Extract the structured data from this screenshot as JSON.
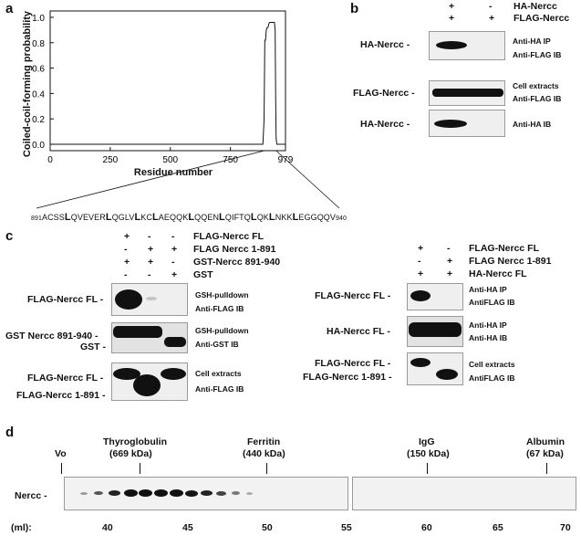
{
  "panel_a": {
    "letter": "a",
    "chart_data": {
      "type": "line",
      "ylabel": "Coiled-coil-forming probability",
      "xlabel": "Residue number",
      "xlim": [
        0,
        979
      ],
      "ylim": [
        -0.05,
        1.05
      ],
      "x_ticks": [
        "0",
        "250",
        "500",
        "750",
        "979"
      ],
      "y_ticks": [
        "0.0",
        "0.2",
        "0.4",
        "0.6",
        "0.8",
        "1.0"
      ],
      "series": [
        {
          "x": [
            0,
            885,
            890,
            893,
            896,
            899,
            903,
            906,
            910,
            913,
            930,
            933,
            936,
            938,
            940,
            943,
            979
          ],
          "y": [
            0,
            0,
            0.2,
            0.82,
            0.82,
            0.9,
            0.92,
            0.92,
            0.95,
            0.96,
            0.96,
            0.96,
            0.9,
            0.4,
            0.05,
            0,
            0
          ]
        }
      ]
    },
    "sequence": {
      "start": "891",
      "end": "940",
      "segments": [
        [
          "ACSS",
          ""
        ],
        [
          "L",
          "b"
        ],
        [
          "QVEVER",
          ""
        ],
        [
          "L",
          "b"
        ],
        [
          "QGLV",
          ""
        ],
        [
          "L",
          "b"
        ],
        [
          "KC",
          ""
        ],
        [
          "L",
          "b"
        ],
        [
          "AEQQK",
          ""
        ],
        [
          "L",
          "b"
        ],
        [
          "QQEN",
          ""
        ],
        [
          "L",
          "b"
        ],
        [
          "QIFTQ",
          ""
        ],
        [
          "L",
          "b"
        ],
        [
          "QK",
          ""
        ],
        [
          "L",
          "b"
        ],
        [
          "NKK",
          ""
        ],
        [
          "L",
          "b"
        ],
        [
          "EGGQQV",
          ""
        ]
      ]
    }
  },
  "panel_b": {
    "letter": "b",
    "header": [
      {
        "signs": [
          "+",
          "-"
        ],
        "label": "HA-Nercc"
      },
      {
        "signs": [
          "+",
          "+"
        ],
        "label": "FLAG-Nercc"
      }
    ],
    "blots": [
      {
        "left": "HA-Nercc -",
        "right": [
          "Anti-HA IP",
          "Anti-FLAG IB"
        ]
      },
      {
        "left": "FLAG-Nercc -",
        "right": [
          "Cell extracts",
          "Anti-FLAG IB"
        ]
      },
      {
        "left": "HA-Nercc -",
        "right": [
          "Anti-HA IB"
        ]
      }
    ]
  },
  "panel_c": {
    "letter": "c",
    "left_header": [
      {
        "signs": [
          "+",
          "-",
          "-"
        ],
        "label": "FLAG-Nercc FL"
      },
      {
        "signs": [
          "-",
          "+",
          "+"
        ],
        "label": "FLAG Nercc 1-891"
      },
      {
        "signs": [
          "+",
          "+",
          "-"
        ],
        "label": "GST-Nercc 891-940"
      },
      {
        "signs": [
          "-",
          "-",
          "+"
        ],
        "label": "GST"
      }
    ],
    "left_blots": [
      {
        "left": [
          "FLAG-Nercc FL -"
        ],
        "right": [
          "GSH-pulldown",
          "Anti-FLAG IB"
        ]
      },
      {
        "left": [
          "GST Nercc 891-940 -",
          "GST -"
        ],
        "right": [
          "GSH-pulldown",
          "Anti-GST IB"
        ]
      },
      {
        "left": [
          "FLAG-Nercc FL -",
          "FLAG-Nercc 1-891 -"
        ],
        "right": [
          "Cell extracts",
          "Anti-FLAG IB"
        ]
      }
    ],
    "right_header": [
      {
        "signs": [
          "+",
          "-"
        ],
        "label": "FLAG-Nercc FL"
      },
      {
        "signs": [
          "-",
          "+"
        ],
        "label": "FLAG Nercc 1-891"
      },
      {
        "signs": [
          "+",
          "+"
        ],
        "label": "HA-Nercc FL"
      }
    ],
    "right_blots": [
      {
        "left": [
          "FLAG-Nercc FL -"
        ],
        "right": [
          "Anti-HA IP",
          "AntiFLAG IB"
        ]
      },
      {
        "left": [
          "HA-Nercc FL -"
        ],
        "right": [
          "Anti-HA IP",
          "Anti-HA IB"
        ]
      },
      {
        "left": [
          "FLAG-Nercc FL -",
          "FLAG-Nercc 1-891 -"
        ],
        "right": [
          "Cell extracts",
          "AntiFLAG IB"
        ]
      }
    ]
  },
  "panel_d": {
    "letter": "d",
    "markers": [
      {
        "name": "Vo",
        "sub": ""
      },
      {
        "name": "Thyroglobulin",
        "sub": "(669 kDa)"
      },
      {
        "name": "Ferritin",
        "sub": "(440 kDa)"
      },
      {
        "name": "IgG",
        "sub": "(150 kDa)"
      },
      {
        "name": "Albumin",
        "sub": "(67 kDa)"
      }
    ],
    "row_label": "Nercc -",
    "axis_label": "(ml):",
    "axis_ticks": [
      "40",
      "45",
      "50",
      "55",
      "60",
      "65",
      "70"
    ]
  }
}
